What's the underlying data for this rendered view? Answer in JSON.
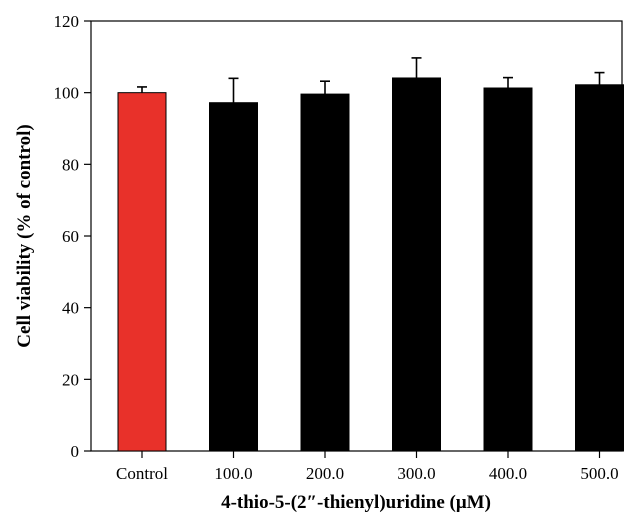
{
  "chart_data": {
    "type": "bar",
    "categories": [
      "Control",
      "100.0",
      "200.0",
      "300.0",
      "400.0",
      "500.0"
    ],
    "values": [
      100,
      97.2,
      99.6,
      104.1,
      101.3,
      102.2
    ],
    "error_bars": [
      1.6,
      6.8,
      3.6,
      5.6,
      2.9,
      3.4
    ],
    "bar_colors": [
      "#e8312a",
      "#000000",
      "#000000",
      "#000000",
      "#000000",
      "#000000"
    ],
    "xlabel": "4-thio-5-(2″-thienyl)uridine (μM)",
    "ylabel": "Cell viability (% of control)",
    "ylim": [
      0,
      120
    ],
    "yticks": [
      0,
      20,
      40,
      60,
      80,
      100,
      120
    ],
    "grid": false,
    "legend": "none"
  }
}
